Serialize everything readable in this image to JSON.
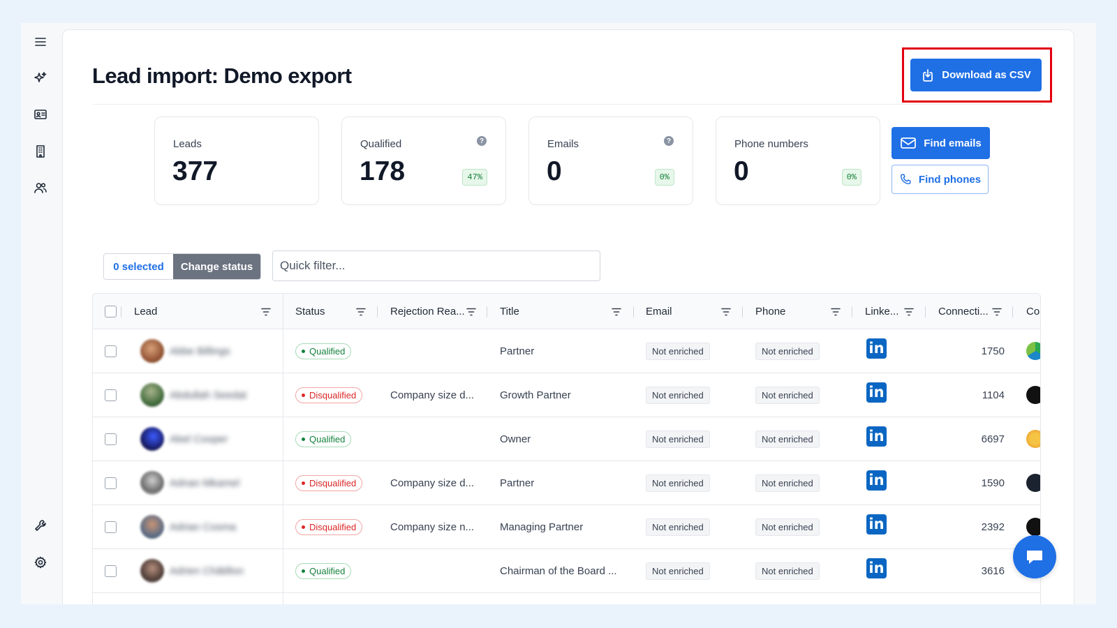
{
  "page": {
    "title": "Lead import: Demo export"
  },
  "toolbar": {
    "download_label": "Download as CSV"
  },
  "sidebar": {
    "icons": [
      "menu-icon",
      "sparkles-icon",
      "contact-card-icon",
      "building-icon",
      "users-icon",
      "wrench-icon",
      "settings-gear-icon"
    ]
  },
  "stats": [
    {
      "label": "Leads",
      "value": "377"
    },
    {
      "label": "Qualified",
      "value": "178",
      "pct": "47%"
    },
    {
      "label": "Emails",
      "value": "0",
      "pct": "0%"
    },
    {
      "label": "Phone numbers",
      "value": "0",
      "pct": "0%"
    }
  ],
  "actions": {
    "find_emails": "Find emails",
    "find_phones": "Find phones"
  },
  "selection": {
    "selected_label": "0 selected",
    "change_status_label": "Change status"
  },
  "filter": {
    "placeholder": "Quick filter..."
  },
  "table": {
    "columns": [
      "Lead",
      "Status",
      "Rejection Rea...",
      "Title",
      "Email",
      "Phone",
      "Linke...",
      "Connecti...",
      "Co"
    ],
    "rows": [
      {
        "lead": "Abbe Billings",
        "status": "Qualified",
        "rejection": "",
        "title": "Partner",
        "email": "Not enriched",
        "phone": "Not enriched",
        "linkedin": "in",
        "connections": "1750"
      },
      {
        "lead": "Abdullah Seedat",
        "status": "Disqualified",
        "rejection": "Company size d...",
        "title": "Growth Partner",
        "email": "Not enriched",
        "phone": "Not enriched",
        "linkedin": "in",
        "connections": "1104"
      },
      {
        "lead": "Abel Cooper",
        "status": "Qualified",
        "rejection": "",
        "title": "Owner",
        "email": "Not enriched",
        "phone": "Not enriched",
        "linkedin": "in",
        "connections": "6697"
      },
      {
        "lead": "Adnan Mkamel",
        "status": "Disqualified",
        "rejection": "Company size d...",
        "title": "Partner",
        "email": "Not enriched",
        "phone": "Not enriched",
        "linkedin": "in",
        "connections": "1590"
      },
      {
        "lead": "Adrian Cosma",
        "status": "Disqualified",
        "rejection": "Company size n...",
        "title": "Managing Partner",
        "email": "Not enriched",
        "phone": "Not enriched",
        "linkedin": "in",
        "connections": "2392"
      },
      {
        "lead": "Adrien Châtillon",
        "status": "Qualified",
        "rejection": "",
        "title": "Chairman of the Board ...",
        "email": "Not enriched",
        "phone": "Not enriched",
        "linkedin": "in",
        "connections": "3616"
      }
    ]
  },
  "colors": {
    "accent": "#1f6fe5",
    "highlight": "#e3000f",
    "linkedin": "#0a66c2",
    "qualified": "#15803d",
    "disqualified": "#dc2626"
  }
}
